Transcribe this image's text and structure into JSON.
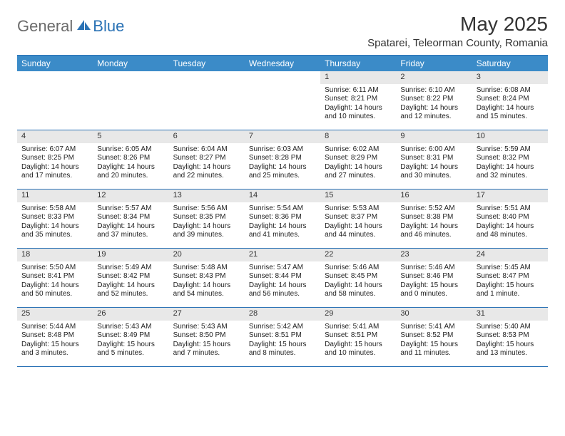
{
  "brand": {
    "part1": "General",
    "part2": "Blue"
  },
  "title": "May 2025",
  "location": "Spatarei, Teleorman County, Romania",
  "colors": {
    "accent": "#3b8bc8",
    "accent_border": "#2a72b5",
    "daynum_bg": "#e8e8e8",
    "text": "#333333"
  },
  "day_headers": [
    "Sunday",
    "Monday",
    "Tuesday",
    "Wednesday",
    "Thursday",
    "Friday",
    "Saturday"
  ],
  "weeks": [
    [
      {
        "empty": true
      },
      {
        "empty": true
      },
      {
        "empty": true
      },
      {
        "empty": true
      },
      {
        "n": "1",
        "sr": "6:11 AM",
        "ss": "8:21 PM",
        "dl": "14 hours and 10 minutes."
      },
      {
        "n": "2",
        "sr": "6:10 AM",
        "ss": "8:22 PM",
        "dl": "14 hours and 12 minutes."
      },
      {
        "n": "3",
        "sr": "6:08 AM",
        "ss": "8:24 PM",
        "dl": "14 hours and 15 minutes."
      }
    ],
    [
      {
        "n": "4",
        "sr": "6:07 AM",
        "ss": "8:25 PM",
        "dl": "14 hours and 17 minutes."
      },
      {
        "n": "5",
        "sr": "6:05 AM",
        "ss": "8:26 PM",
        "dl": "14 hours and 20 minutes."
      },
      {
        "n": "6",
        "sr": "6:04 AM",
        "ss": "8:27 PM",
        "dl": "14 hours and 22 minutes."
      },
      {
        "n": "7",
        "sr": "6:03 AM",
        "ss": "8:28 PM",
        "dl": "14 hours and 25 minutes."
      },
      {
        "n": "8",
        "sr": "6:02 AM",
        "ss": "8:29 PM",
        "dl": "14 hours and 27 minutes."
      },
      {
        "n": "9",
        "sr": "6:00 AM",
        "ss": "8:31 PM",
        "dl": "14 hours and 30 minutes."
      },
      {
        "n": "10",
        "sr": "5:59 AM",
        "ss": "8:32 PM",
        "dl": "14 hours and 32 minutes."
      }
    ],
    [
      {
        "n": "11",
        "sr": "5:58 AM",
        "ss": "8:33 PM",
        "dl": "14 hours and 35 minutes."
      },
      {
        "n": "12",
        "sr": "5:57 AM",
        "ss": "8:34 PM",
        "dl": "14 hours and 37 minutes."
      },
      {
        "n": "13",
        "sr": "5:56 AM",
        "ss": "8:35 PM",
        "dl": "14 hours and 39 minutes."
      },
      {
        "n": "14",
        "sr": "5:54 AM",
        "ss": "8:36 PM",
        "dl": "14 hours and 41 minutes."
      },
      {
        "n": "15",
        "sr": "5:53 AM",
        "ss": "8:37 PM",
        "dl": "14 hours and 44 minutes."
      },
      {
        "n": "16",
        "sr": "5:52 AM",
        "ss": "8:38 PM",
        "dl": "14 hours and 46 minutes."
      },
      {
        "n": "17",
        "sr": "5:51 AM",
        "ss": "8:40 PM",
        "dl": "14 hours and 48 minutes."
      }
    ],
    [
      {
        "n": "18",
        "sr": "5:50 AM",
        "ss": "8:41 PM",
        "dl": "14 hours and 50 minutes."
      },
      {
        "n": "19",
        "sr": "5:49 AM",
        "ss": "8:42 PM",
        "dl": "14 hours and 52 minutes."
      },
      {
        "n": "20",
        "sr": "5:48 AM",
        "ss": "8:43 PM",
        "dl": "14 hours and 54 minutes."
      },
      {
        "n": "21",
        "sr": "5:47 AM",
        "ss": "8:44 PM",
        "dl": "14 hours and 56 minutes."
      },
      {
        "n": "22",
        "sr": "5:46 AM",
        "ss": "8:45 PM",
        "dl": "14 hours and 58 minutes."
      },
      {
        "n": "23",
        "sr": "5:46 AM",
        "ss": "8:46 PM",
        "dl": "15 hours and 0 minutes."
      },
      {
        "n": "24",
        "sr": "5:45 AM",
        "ss": "8:47 PM",
        "dl": "15 hours and 1 minute."
      }
    ],
    [
      {
        "n": "25",
        "sr": "5:44 AM",
        "ss": "8:48 PM",
        "dl": "15 hours and 3 minutes."
      },
      {
        "n": "26",
        "sr": "5:43 AM",
        "ss": "8:49 PM",
        "dl": "15 hours and 5 minutes."
      },
      {
        "n": "27",
        "sr": "5:43 AM",
        "ss": "8:50 PM",
        "dl": "15 hours and 7 minutes."
      },
      {
        "n": "28",
        "sr": "5:42 AM",
        "ss": "8:51 PM",
        "dl": "15 hours and 8 minutes."
      },
      {
        "n": "29",
        "sr": "5:41 AM",
        "ss": "8:51 PM",
        "dl": "15 hours and 10 minutes."
      },
      {
        "n": "30",
        "sr": "5:41 AM",
        "ss": "8:52 PM",
        "dl": "15 hours and 11 minutes."
      },
      {
        "n": "31",
        "sr": "5:40 AM",
        "ss": "8:53 PM",
        "dl": "15 hours and 13 minutes."
      }
    ]
  ],
  "labels": {
    "sunrise": "Sunrise: ",
    "sunset": "Sunset: ",
    "daylight": "Daylight: "
  }
}
